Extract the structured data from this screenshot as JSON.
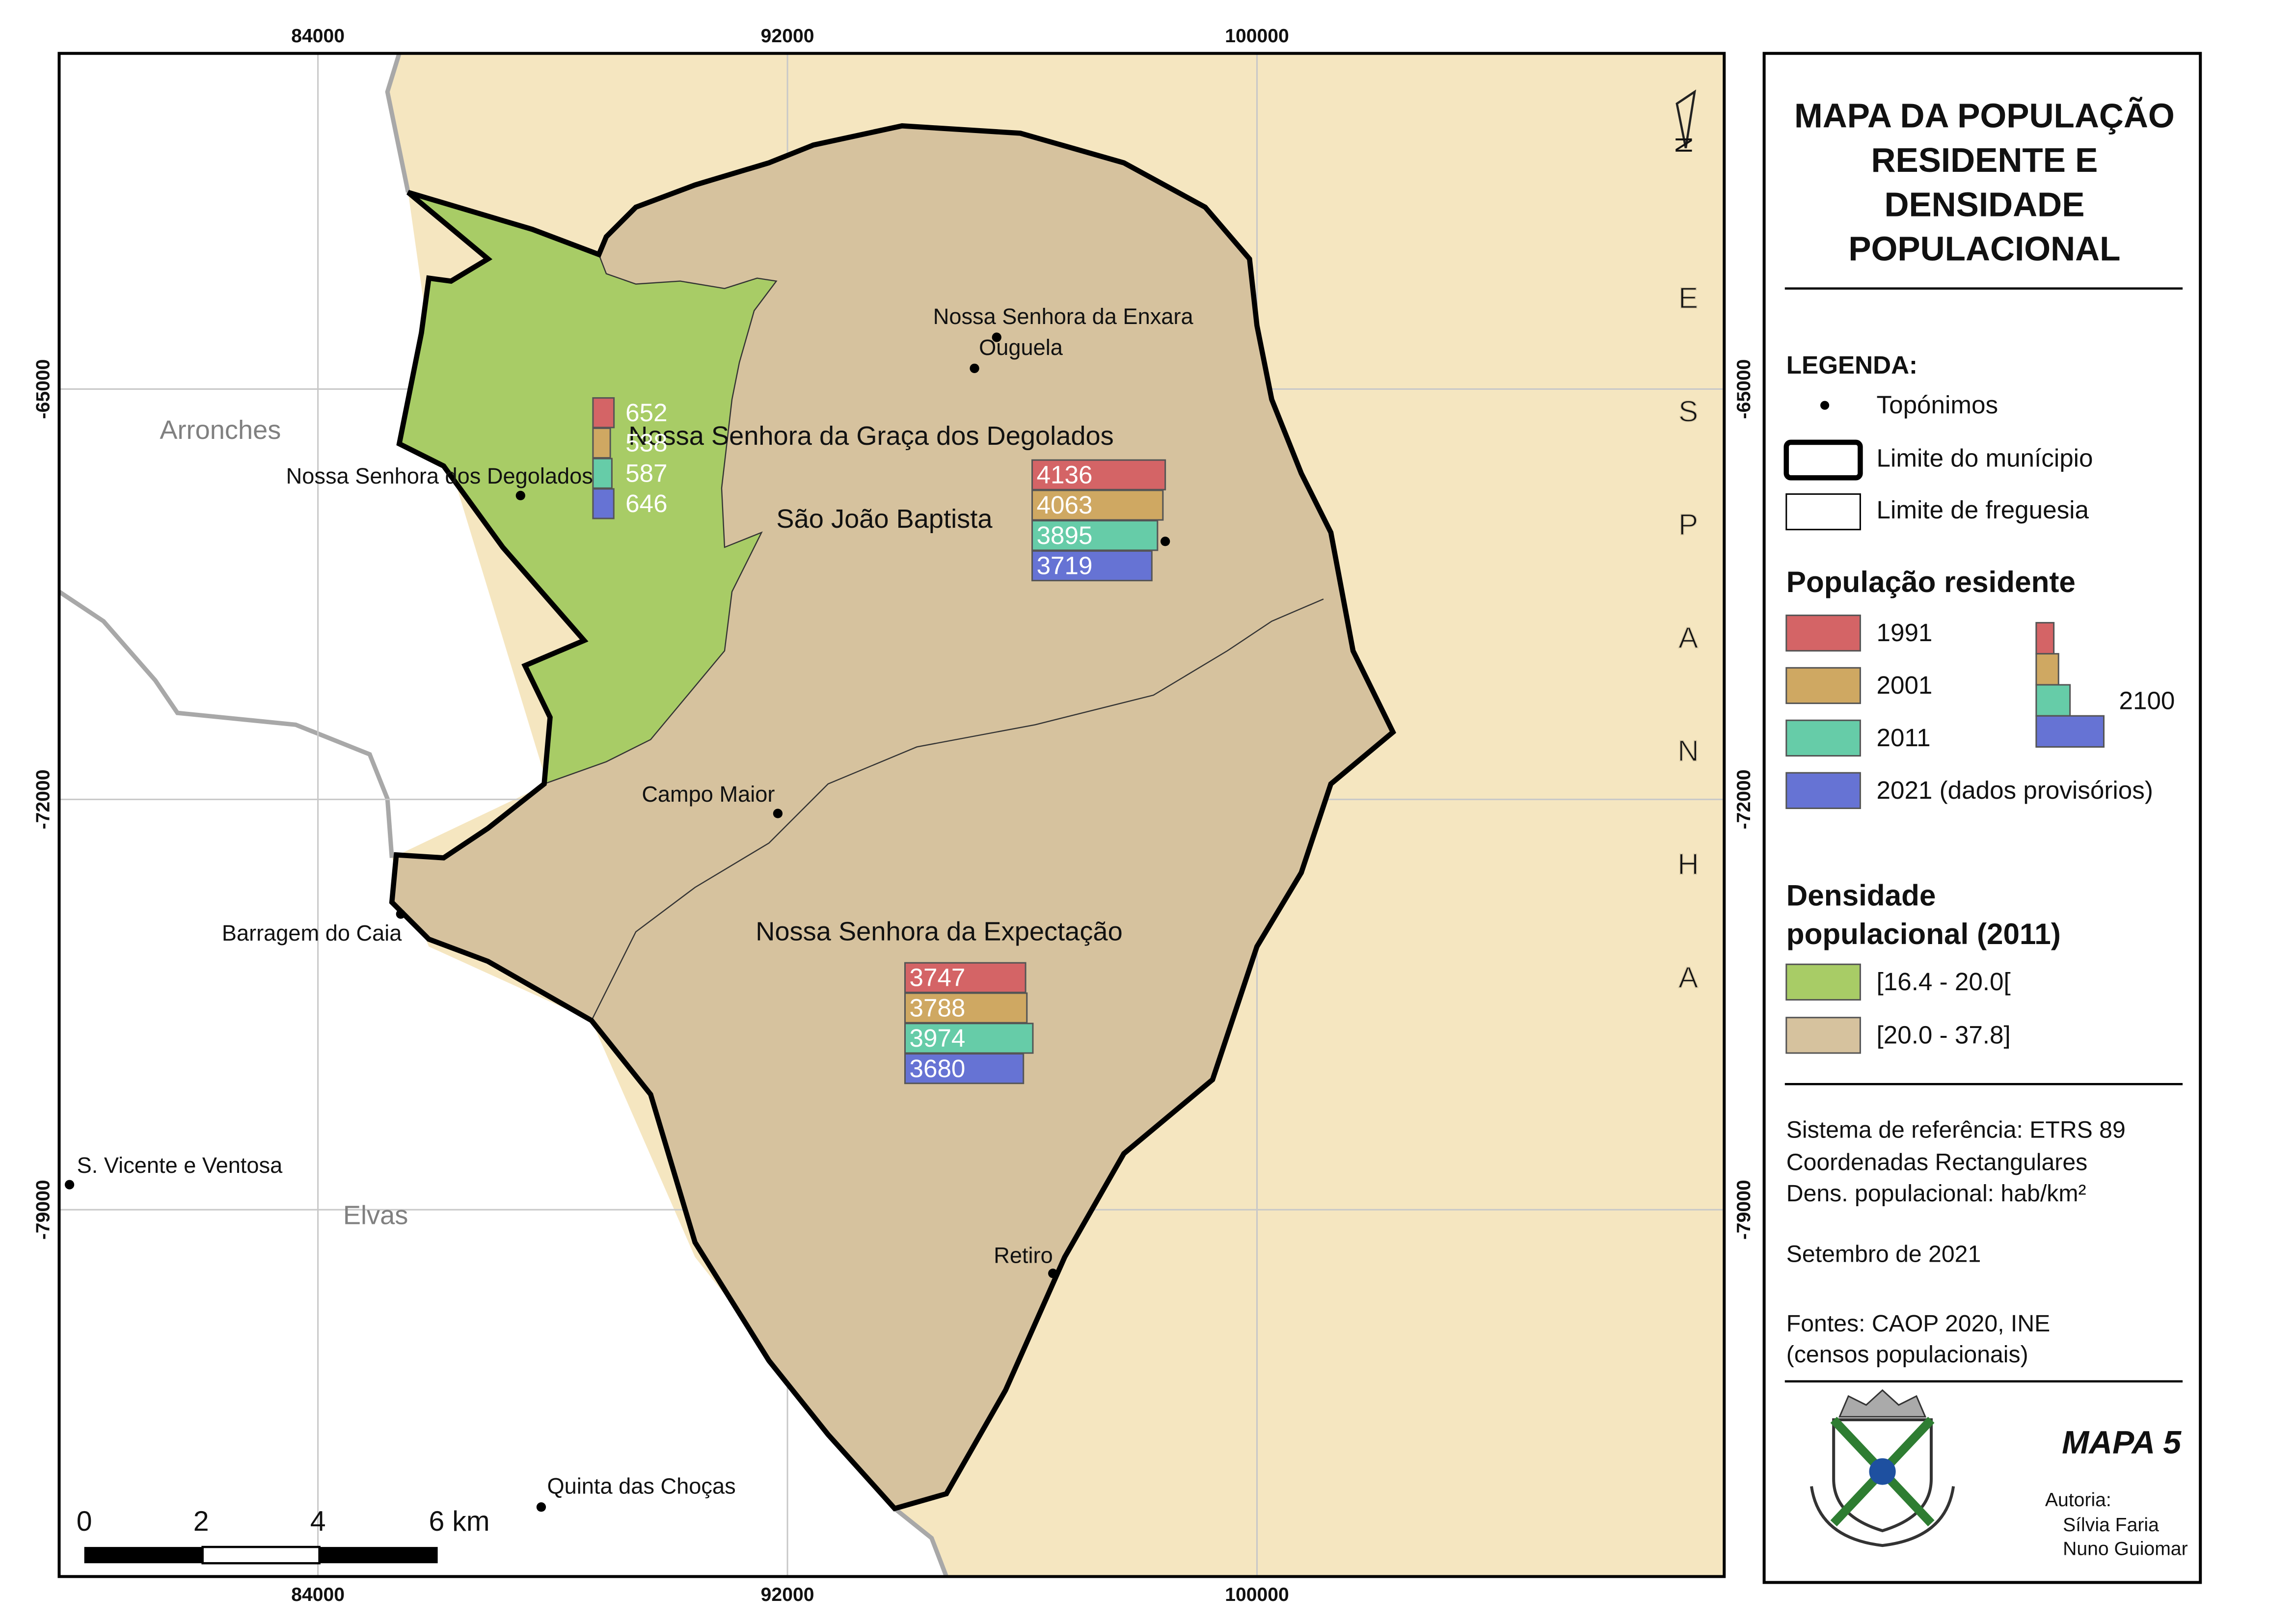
{
  "title_lines": [
    "MAPA DA POPULAÇÃO",
    "RESIDENTE E",
    "DENSIDADE",
    "POPULACIONAL"
  ],
  "coordinates": {
    "x": [
      84000,
      92000,
      100000
    ],
    "y": [
      -65000,
      -72000,
      -79000
    ]
  },
  "north": "N",
  "country": "ESPANHA",
  "regions": [
    "Arronches",
    "Elvas"
  ],
  "toponyms": [
    "Nossa Senhora da Enxara",
    "Ouguela",
    "Nossa Senhora dos Degolados",
    "Campo Maior",
    "Barragem do Caia",
    "S. Vicente e Ventosa",
    "Quinta das Choças",
    "Retiro"
  ],
  "parishes": [
    {
      "name": "Nossa Senhora da Graça dos Degolados",
      "values": [
        652,
        538,
        587,
        646
      ]
    },
    {
      "name": "São João Baptista",
      "values": [
        4136,
        4063,
        3895,
        3719
      ]
    },
    {
      "name": "Nossa Senhora da Expectação",
      "values": [
        3747,
        3788,
        3974,
        3680
      ]
    }
  ],
  "legend": {
    "heading": "LEGENDA:",
    "symbols": [
      "Topónimos",
      "Limite do munícipio",
      "Limite de freguesia"
    ],
    "population": {
      "heading": "População residente",
      "series": [
        {
          "name": "1991",
          "color": "#d46466"
        },
        {
          "name": "2001",
          "color": "#cfa862"
        },
        {
          "name": "2011",
          "color": "#66cca8"
        },
        {
          "name": "2021 (dados provisórios)",
          "color": "#6673d4"
        }
      ],
      "reference_value": 2100
    },
    "density": {
      "heading_lines": [
        "Densidade",
        "populacional (2011)"
      ],
      "classes": [
        {
          "name": "[16.4 - 20.0[",
          "color": "#a8cc66"
        },
        {
          "name": "[20.0 - 37.8]",
          "color": "#d6c29e"
        }
      ]
    }
  },
  "info_lines": [
    "Sistema de referência: ETRS 89",
    "Coordenadas Rectangulares",
    "Dens. populacional: hab/km²",
    "Setembro de 2021",
    "Fontes: CAOP 2020, INE",
    "(censos populacionais)"
  ],
  "scale_labels": [
    "0",
    "2",
    "4",
    "6 km"
  ],
  "map_number": "MAPA 5",
  "authors": [
    "Autoria:",
    "Sílvia Faria",
    "Nuno Guiomar"
  ]
}
